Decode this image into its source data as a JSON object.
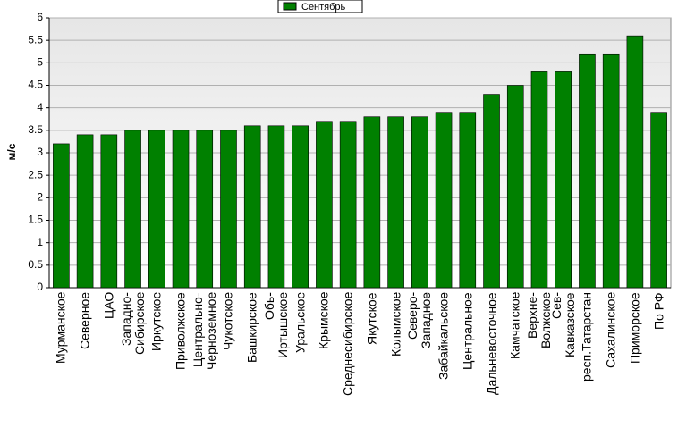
{
  "chart_data": {
    "type": "bar",
    "y_label": "м/с",
    "legend": [
      "Сентябрь"
    ],
    "legend_position": "top",
    "color": "#008000",
    "grid": true,
    "categories": [
      "Мурманское",
      "Северное",
      "ЦАО",
      "Западно-\nСибирское",
      "Иркутское",
      "Приволжское",
      "Центрально-\nЧерноземное",
      "Чукотское",
      "Башкирское",
      "Обь-\nИртышское",
      "Уральское",
      "Крымское",
      "Среднесибирское",
      "Якутское",
      "Колымское",
      "Северо-\nЗападное",
      "Забайкальское",
      "Центральное",
      "Дальневосточное",
      "Камчатское",
      "Верхне-\nВолжское",
      "Сев-\nКавказское",
      "респ.Татарстан",
      "Сахалинское",
      "Приморское",
      "По РФ"
    ],
    "values": [
      3.2,
      3.4,
      3.4,
      3.5,
      3.5,
      3.5,
      3.5,
      3.5,
      3.6,
      3.6,
      3.6,
      3.7,
      3.7,
      3.8,
      3.8,
      3.8,
      3.9,
      3.9,
      4.3,
      4.5,
      4.8,
      4.8,
      5.2,
      5.2,
      5.6,
      3.9
    ],
    "ylim": [
      0,
      6
    ],
    "yticks": [
      0,
      0.5,
      1,
      1.5,
      2,
      2.5,
      3,
      3.5,
      4,
      4.5,
      5,
      5.5,
      6
    ]
  }
}
